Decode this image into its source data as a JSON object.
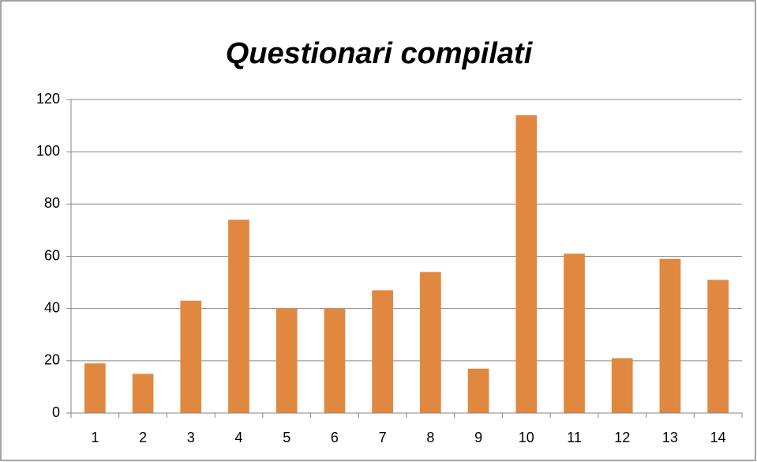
{
  "chart_data": {
    "type": "bar",
    "title": "Questionari compilati",
    "categories": [
      "1",
      "2",
      "3",
      "4",
      "5",
      "6",
      "7",
      "8",
      "9",
      "10",
      "11",
      "12",
      "13",
      "14"
    ],
    "values": [
      19,
      15,
      43,
      74,
      40,
      40,
      47,
      54,
      17,
      114,
      61,
      21,
      59,
      51
    ],
    "color": "#e0883f",
    "ylim": [
      0,
      120
    ],
    "yticks": [
      0,
      20,
      40,
      60,
      80,
      100,
      120
    ],
    "grid": true
  }
}
